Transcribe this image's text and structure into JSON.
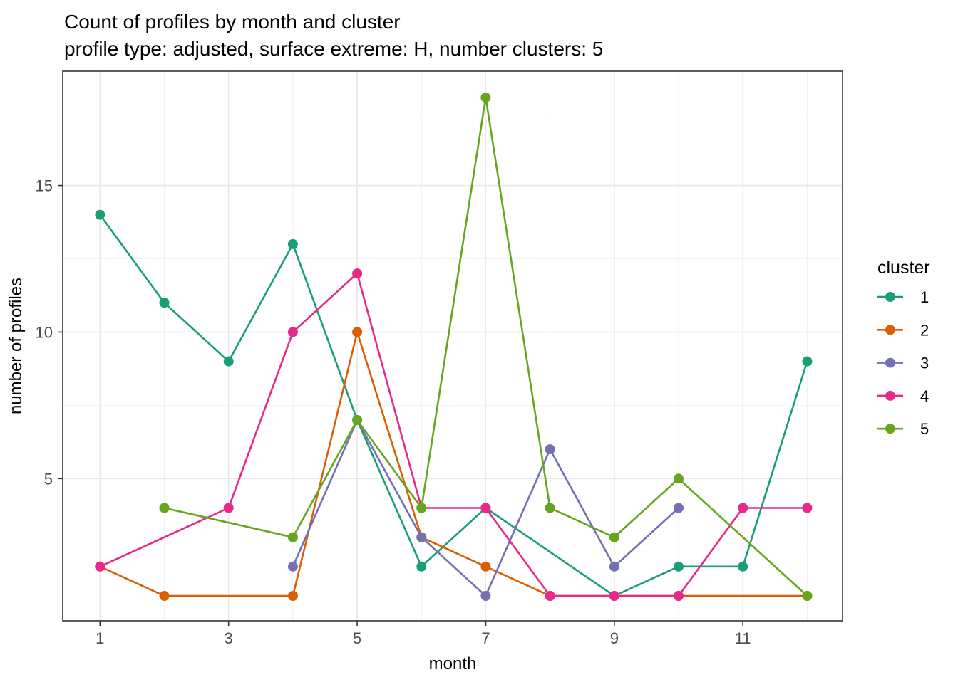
{
  "chart_data": {
    "type": "line",
    "title": "Count of profiles by month and cluster",
    "subtitle": "profile type: adjusted, surface extreme: H, number clusters: 5",
    "xlabel": "month",
    "ylabel": "number of profiles",
    "legend_title": "cluster",
    "legend_position": "right",
    "grid": true,
    "background": "#ffffff",
    "panel_border_color": "#333333",
    "major_grid_color": "#e8e8e8",
    "minor_grid_color": "#f2f2f2",
    "tick_label_color": "#4d4d4d",
    "xlim": [
      0.42,
      12.55
    ],
    "ylim": [
      0.15,
      18.9
    ],
    "x_ticks": [
      1,
      3,
      5,
      7,
      9,
      11
    ],
    "x_minor": [
      2,
      4,
      6,
      8,
      10,
      12
    ],
    "y_ticks": [
      5,
      10,
      15
    ],
    "y_minor": [
      2.5,
      7.5,
      12.5,
      17.5
    ],
    "series": [
      {
        "name": "1",
        "color": "#1B9E77",
        "points": [
          [
            1,
            14
          ],
          [
            2,
            11
          ],
          [
            3,
            9
          ],
          [
            4,
            13
          ],
          [
            5,
            7
          ],
          [
            6,
            2
          ],
          [
            7,
            4
          ],
          [
            9,
            1
          ],
          [
            10,
            2
          ],
          [
            11,
            2
          ],
          [
            12,
            9
          ]
        ]
      },
      {
        "name": "2",
        "color": "#D95F02",
        "points": [
          [
            1,
            2
          ],
          [
            2,
            1
          ],
          [
            4,
            1
          ],
          [
            5,
            10
          ],
          [
            6,
            3
          ],
          [
            7,
            2
          ],
          [
            8,
            1
          ],
          [
            10,
            1
          ],
          [
            12,
            1
          ]
        ]
      },
      {
        "name": "3",
        "color": "#7570B3",
        "points": [
          [
            4,
            2
          ],
          [
            5,
            7
          ],
          [
            6,
            3
          ],
          [
            7,
            1
          ],
          [
            8,
            6
          ],
          [
            9,
            2
          ],
          [
            10,
            4
          ]
        ]
      },
      {
        "name": "4",
        "color": "#E7298A",
        "points": [
          [
            1,
            2
          ],
          [
            3,
            4
          ],
          [
            4,
            10
          ],
          [
            5,
            12
          ],
          [
            6,
            4
          ],
          [
            7,
            4
          ],
          [
            8,
            1
          ],
          [
            9,
            1
          ],
          [
            10,
            1
          ],
          [
            11,
            4
          ],
          [
            12,
            4
          ]
        ]
      },
      {
        "name": "5",
        "color": "#66A61E",
        "points": [
          [
            2,
            4
          ],
          [
            4,
            3
          ],
          [
            5,
            7
          ],
          [
            6,
            4
          ],
          [
            7,
            18
          ],
          [
            8,
            4
          ],
          [
            9,
            3
          ],
          [
            10,
            5
          ],
          [
            12,
            1
          ]
        ]
      }
    ]
  }
}
